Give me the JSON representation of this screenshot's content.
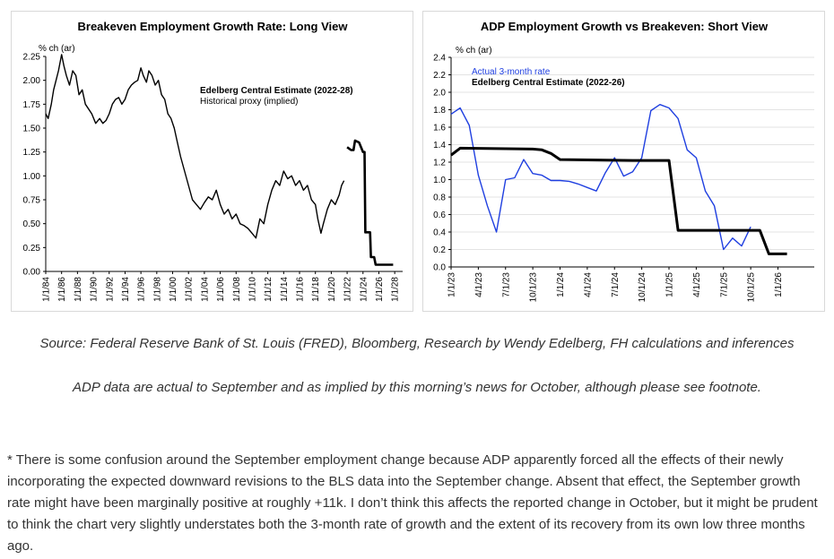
{
  "chart_data": [
    {
      "type": "line",
      "title": "Breakeven Employment Growth Rate: Long View",
      "ylabel": "% ch (ar)",
      "xlabel": "",
      "ylim": [
        0,
        2.25
      ],
      "yticks": [
        "0.00",
        "0.25",
        "0.50",
        "0.75",
        "1.00",
        "1.25",
        "1.50",
        "1.75",
        "2.00",
        "2.25"
      ],
      "xlim": [
        1984,
        2029
      ],
      "xticks": [
        "1/1/84",
        "1/1/86",
        "1/1/88",
        "1/1/90",
        "1/1/92",
        "1/1/94",
        "1/1/96",
        "1/1/98",
        "1/1/00",
        "1/1/02",
        "1/1/04",
        "1/1/06",
        "1/1/08",
        "1/1/10",
        "1/1/12",
        "1/1/14",
        "1/1/16",
        "1/1/18",
        "1/1/20",
        "1/1/22",
        "1/1/24",
        "1/1/26",
        "1/1/28"
      ],
      "legend": [
        "Edelberg Central Estimate (2022-28)",
        "Historical proxy (implied)"
      ],
      "series": [
        {
          "name": "Historical proxy (implied)",
          "color": "#000000",
          "x": [
            1984.0,
            1984.3,
            1984.7,
            1985.0,
            1985.3,
            1985.6,
            1986.0,
            1986.3,
            1986.6,
            1987.0,
            1987.4,
            1987.8,
            1988.2,
            1988.6,
            1989.0,
            1989.4,
            1989.8,
            1990.3,
            1990.8,
            1991.2,
            1991.6,
            1992.0,
            1992.4,
            1992.8,
            1993.2,
            1993.6,
            1994.0,
            1994.4,
            1994.8,
            1995.2,
            1995.6,
            1996.0,
            1996.3,
            1996.7,
            1997.0,
            1997.4,
            1997.8,
            1998.2,
            1998.6,
            1999.0,
            1999.4,
            1999.8,
            2000.2,
            2000.6,
            2001.0,
            2001.5,
            2002.0,
            2002.5,
            2003.0,
            2003.5,
            2004.0,
            2004.5,
            2005.0,
            2005.5,
            2006.0,
            2006.5,
            2007.0,
            2007.5,
            2008.0,
            2008.5,
            2009.0,
            2009.5,
            2010.0,
            2010.5,
            2011.0,
            2011.5,
            2012.0,
            2012.5,
            2013.0,
            2013.5,
            2014.0,
            2014.5,
            2015.0,
            2015.5,
            2016.0,
            2016.5,
            2017.0,
            2017.5,
            2018.0,
            2018.3,
            2018.7,
            2019.0,
            2019.5,
            2020.0,
            2020.5,
            2021.0,
            2021.3,
            2021.6
          ],
          "values": [
            1.65,
            1.6,
            1.75,
            1.9,
            2.0,
            2.1,
            2.27,
            2.15,
            2.05,
            1.95,
            2.1,
            2.05,
            1.85,
            1.9,
            1.75,
            1.7,
            1.65,
            1.55,
            1.6,
            1.55,
            1.58,
            1.65,
            1.75,
            1.8,
            1.82,
            1.75,
            1.8,
            1.9,
            1.95,
            1.98,
            2.0,
            2.13,
            2.05,
            1.98,
            2.1,
            2.05,
            1.95,
            2.0,
            1.85,
            1.8,
            1.65,
            1.6,
            1.5,
            1.35,
            1.2,
            1.05,
            0.9,
            0.75,
            0.7,
            0.65,
            0.72,
            0.78,
            0.75,
            0.85,
            0.7,
            0.6,
            0.65,
            0.55,
            0.6,
            0.5,
            0.48,
            0.45,
            0.4,
            0.35,
            0.55,
            0.5,
            0.7,
            0.85,
            0.95,
            0.9,
            1.05,
            0.97,
            1.0,
            0.9,
            0.95,
            0.85,
            0.9,
            0.75,
            0.7,
            0.55,
            0.4,
            0.5,
            0.65,
            0.75,
            0.7,
            0.8,
            0.9,
            0.95
          ]
        },
        {
          "name": "Edelberg Central Estimate (2022-28)",
          "color": "#000000",
          "x": [
            2022.0,
            2022.5,
            2022.8,
            2023.0,
            2023.5,
            2023.9,
            2024.0,
            2024.2,
            2024.3,
            2024.9,
            2025.0,
            2025.4,
            2025.6,
            2027.8
          ],
          "values": [
            1.3,
            1.27,
            1.27,
            1.37,
            1.35,
            1.27,
            1.25,
            1.25,
            0.41,
            0.41,
            0.15,
            0.15,
            0.07,
            0.07
          ]
        }
      ]
    },
    {
      "type": "line",
      "title": "ADP Employment Growth vs Breakeven: Short View",
      "ylabel": "% ch (ar)",
      "xlabel": "",
      "ylim": [
        0,
        2.4
      ],
      "yticks": [
        "0.0",
        "0.2",
        "0.4",
        "0.6",
        "0.8",
        "1.0",
        "1.2",
        "1.4",
        "1.6",
        "1.8",
        "2.0",
        "2.2",
        "2.4"
      ],
      "xlim": [
        0,
        40
      ],
      "xticks": [
        "1/1/23",
        "4/1/23",
        "7/1/23",
        "10/1/23",
        "1/1/24",
        "4/1/24",
        "7/1/24",
        "10/1/24",
        "1/1/25",
        "4/1/25",
        "7/1/25",
        "10/1/25",
        "1/1/26"
      ],
      "legend": [
        "Actual 3-month rate",
        "Edelberg Central Estimate (2022-26)"
      ],
      "series": [
        {
          "name": "Actual 3-month rate",
          "color": "#1f3fe0",
          "x": [
            0,
            1,
            2,
            3,
            4,
            5,
            6,
            7,
            8,
            9,
            10,
            11,
            12,
            13,
            14,
            15,
            16,
            17,
            18,
            19,
            20,
            21,
            22,
            23,
            24,
            25,
            26,
            27,
            28,
            29,
            30,
            31,
            32,
            33,
            34
          ],
          "values": [
            1.75,
            1.82,
            1.62,
            1.05,
            0.7,
            0.4,
            1.0,
            1.02,
            1.23,
            1.07,
            1.05,
            0.99,
            0.99,
            0.98,
            0.95,
            0.91,
            0.87,
            1.08,
            1.25,
            1.04,
            1.09,
            1.25,
            1.79,
            1.86,
            1.82,
            1.7,
            1.34,
            1.25,
            0.87,
            0.7,
            0.2,
            0.33,
            0.24,
            0.46,
            null
          ]
        },
        {
          "name": "Edelberg Central Estimate (2022-26)",
          "color": "#000000",
          "x": [
            0,
            1,
            9,
            10,
            11,
            12,
            20,
            21,
            22,
            23,
            24,
            25,
            26,
            34,
            35,
            36,
            37
          ],
          "values": [
            1.28,
            1.36,
            1.35,
            1.34,
            1.3,
            1.23,
            1.22,
            1.22,
            1.22,
            1.22,
            1.22,
            0.42,
            0.42,
            0.42,
            0.15,
            0.15,
            0.15
          ]
        }
      ]
    }
  ],
  "captions": {
    "source": "Source: Federal Reserve Bank of St. Louis (FRED), Bloomberg, Research by Wendy Edelberg, FH calculations and inferences",
    "adp_note": "ADP data are actual to September and as implied by this morning’s news for October, although please see footnote."
  },
  "footnote": "* There is some confusion around the September employment change because ADP apparently forced all the effects of their newly incorporating the expected downward revisions to the BLS data into the September change. Absent that effect, the September growth rate might have been marginally positive at roughly +11k.  I don’t think this affects the reported change in October, but it might be prudent to think the chart very slightly understates both the 3-month rate of growth and the extent of its recovery from its own low three months ago."
}
